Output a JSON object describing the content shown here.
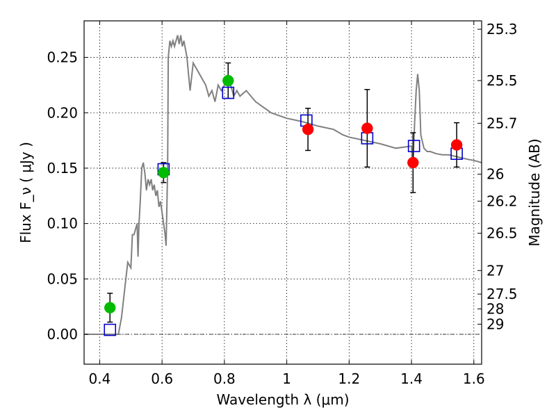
{
  "chart_data": {
    "type": "scatter",
    "title": "",
    "xlabel": "Wavelength  λ (μm)",
    "ylabel": "Flux  F_ν  ( μJy )",
    "ylabel_right": "Magnitude (AB)",
    "xlim": [
      0.35,
      1.625
    ],
    "ylim": [
      -0.027,
      0.283
    ],
    "grid": true,
    "x_ticks": [
      {
        "value": 0.4,
        "label": "0.4"
      },
      {
        "value": 0.6,
        "label": "0.6"
      },
      {
        "value": 0.8,
        "label": "0.8"
      },
      {
        "value": 1.0,
        "label": "1"
      },
      {
        "value": 1.2,
        "label": "1.2"
      },
      {
        "value": 1.4,
        "label": "1.4"
      },
      {
        "value": 1.6,
        "label": "1.6"
      }
    ],
    "y_ticks": [
      {
        "value": 0.0,
        "label": "0.00"
      },
      {
        "value": 0.05,
        "label": "0.05"
      },
      {
        "value": 0.1,
        "label": "0.10"
      },
      {
        "value": 0.15,
        "label": "0.15"
      },
      {
        "value": 0.2,
        "label": "0.20"
      },
      {
        "value": 0.25,
        "label": "0.25"
      }
    ],
    "mag_ticks": [
      {
        "value": 25.3,
        "label": "25.3"
      },
      {
        "value": 25.5,
        "label": "25.5"
      },
      {
        "value": 25.7,
        "label": "25.7"
      },
      {
        "value": 26.0,
        "label": "26"
      },
      {
        "value": 26.2,
        "label": "26.2"
      },
      {
        "value": 26.5,
        "label": "26.5"
      },
      {
        "value": 27.0,
        "label": "27"
      },
      {
        "value": 27.5,
        "label": "27.5"
      },
      {
        "value": 28.0,
        "label": "28"
      },
      {
        "value": 29.0,
        "label": "29"
      }
    ],
    "colors": {
      "model": "#808080",
      "green": "#00bb00",
      "red": "#ff0000",
      "box": "#0000cc",
      "error": "#000000",
      "grid": "#000000",
      "zero_line": "#000000"
    },
    "model_spectrum": {
      "name": "model SED",
      "x": [
        0.35,
        0.455,
        0.46,
        0.47,
        0.48,
        0.49,
        0.5,
        0.505,
        0.51,
        0.52,
        0.523,
        0.526,
        0.53,
        0.535,
        0.54,
        0.545,
        0.55,
        0.555,
        0.56,
        0.565,
        0.57,
        0.575,
        0.58,
        0.585,
        0.59,
        0.595,
        0.6,
        0.605,
        0.61,
        0.613,
        0.618,
        0.62,
        0.625,
        0.63,
        0.635,
        0.64,
        0.645,
        0.65,
        0.655,
        0.66,
        0.665,
        0.67,
        0.68,
        0.69,
        0.7,
        0.71,
        0.72,
        0.73,
        0.74,
        0.75,
        0.76,
        0.77,
        0.78,
        0.79,
        0.8,
        0.81,
        0.82,
        0.83,
        0.84,
        0.85,
        0.87,
        0.9,
        0.95,
        1.0,
        1.05,
        1.1,
        1.15,
        1.18,
        1.2,
        1.25,
        1.3,
        1.35,
        1.4,
        1.405,
        1.41,
        1.415,
        1.42,
        1.425,
        1.43,
        1.44,
        1.45,
        1.46,
        1.48,
        1.5,
        1.52,
        1.55,
        1.58,
        1.6,
        1.625
      ],
      "y": [
        0.0,
        0.0,
        0.0,
        0.015,
        0.04,
        0.065,
        0.06,
        0.09,
        0.09,
        0.1,
        0.07,
        0.1,
        0.12,
        0.15,
        0.155,
        0.145,
        0.13,
        0.14,
        0.135,
        0.14,
        0.13,
        0.135,
        0.125,
        0.13,
        0.115,
        0.12,
        0.11,
        0.1,
        0.09,
        0.08,
        0.15,
        0.25,
        0.265,
        0.26,
        0.265,
        0.26,
        0.265,
        0.27,
        0.262,
        0.27,
        0.26,
        0.265,
        0.25,
        0.22,
        0.245,
        0.24,
        0.235,
        0.23,
        0.225,
        0.215,
        0.22,
        0.21,
        0.225,
        0.22,
        0.225,
        0.23,
        0.225,
        0.215,
        0.22,
        0.215,
        0.22,
        0.21,
        0.2,
        0.195,
        0.192,
        0.188,
        0.185,
        0.18,
        0.178,
        0.175,
        0.172,
        0.168,
        0.17,
        0.15,
        0.19,
        0.22,
        0.235,
        0.22,
        0.18,
        0.168,
        0.165,
        0.165,
        0.163,
        0.162,
        0.162,
        0.16,
        0.158,
        0.157,
        0.155
      ]
    },
    "series": [
      {
        "name": "green points",
        "marker": "circle",
        "x": [
          0.433,
          0.605,
          0.812
        ],
        "y": [
          0.024,
          0.146,
          0.229
        ],
        "yerr": [
          0.013,
          0.009,
          0.016
        ]
      },
      {
        "name": "red points",
        "marker": "circle",
        "x": [
          1.068,
          1.258,
          1.405,
          1.545
        ],
        "y": [
          0.185,
          0.186,
          0.155,
          0.171
        ],
        "yerr": [
          0.019,
          0.035,
          0.027,
          0.02
        ]
      },
      {
        "name": "model photometry",
        "marker": "square",
        "x": [
          0.433,
          0.605,
          0.812,
          1.063,
          1.258,
          1.408,
          1.545
        ],
        "y": [
          0.004,
          0.149,
          0.218,
          0.193,
          0.177,
          0.17,
          0.163
        ]
      }
    ]
  }
}
